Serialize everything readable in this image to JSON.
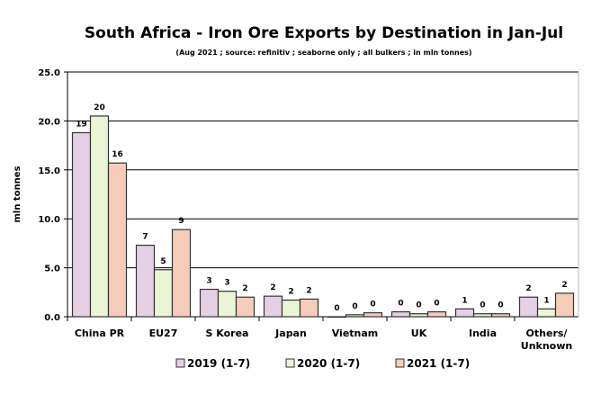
{
  "chart_data": {
    "type": "bar",
    "title": "South Africa - Iron Ore Exports by Destination in Jan-Jul",
    "subtitle": "(Aug 2021 ; source: refinitiv ; seaborne only ; all bulkers ; in mln tonnes)",
    "xlabel": "",
    "ylabel": "mln tonnes",
    "ylim": [
      0,
      25
    ],
    "yticks": [
      "0.0",
      "5.0",
      "10.0",
      "15.0",
      "20.0",
      "25.0"
    ],
    "grid": true,
    "legend_position": "bottom",
    "categories": [
      [
        "China PR"
      ],
      [
        "EU27"
      ],
      [
        "S Korea"
      ],
      [
        "Japan"
      ],
      [
        "Vietnam"
      ],
      [
        "UK"
      ],
      [
        "India"
      ],
      [
        "Others/",
        "Unknown"
      ]
    ],
    "series": [
      {
        "name": "2019 (1-7)",
        "color": "#E6D0E6",
        "values": [
          18.8,
          7.3,
          2.8,
          2.1,
          0.0,
          0.5,
          0.8,
          2.0
        ],
        "labels": [
          "19",
          "7",
          "3",
          "2",
          "0",
          "0",
          "1",
          "2"
        ]
      },
      {
        "name": "2020 (1-7)",
        "color": "#EBF5D6",
        "values": [
          20.5,
          4.8,
          2.6,
          1.7,
          0.2,
          0.3,
          0.3,
          0.8
        ],
        "labels": [
          "20",
          "5",
          "3",
          "2",
          "0",
          "0",
          "0",
          "1"
        ]
      },
      {
        "name": "2021 (1-7)",
        "color": "#F5CDB8",
        "values": [
          15.7,
          8.9,
          2.0,
          1.8,
          0.4,
          0.5,
          0.3,
          2.4
        ],
        "labels": [
          "16",
          "9",
          "2",
          "2",
          "0",
          "0",
          "0",
          "2"
        ]
      }
    ]
  }
}
